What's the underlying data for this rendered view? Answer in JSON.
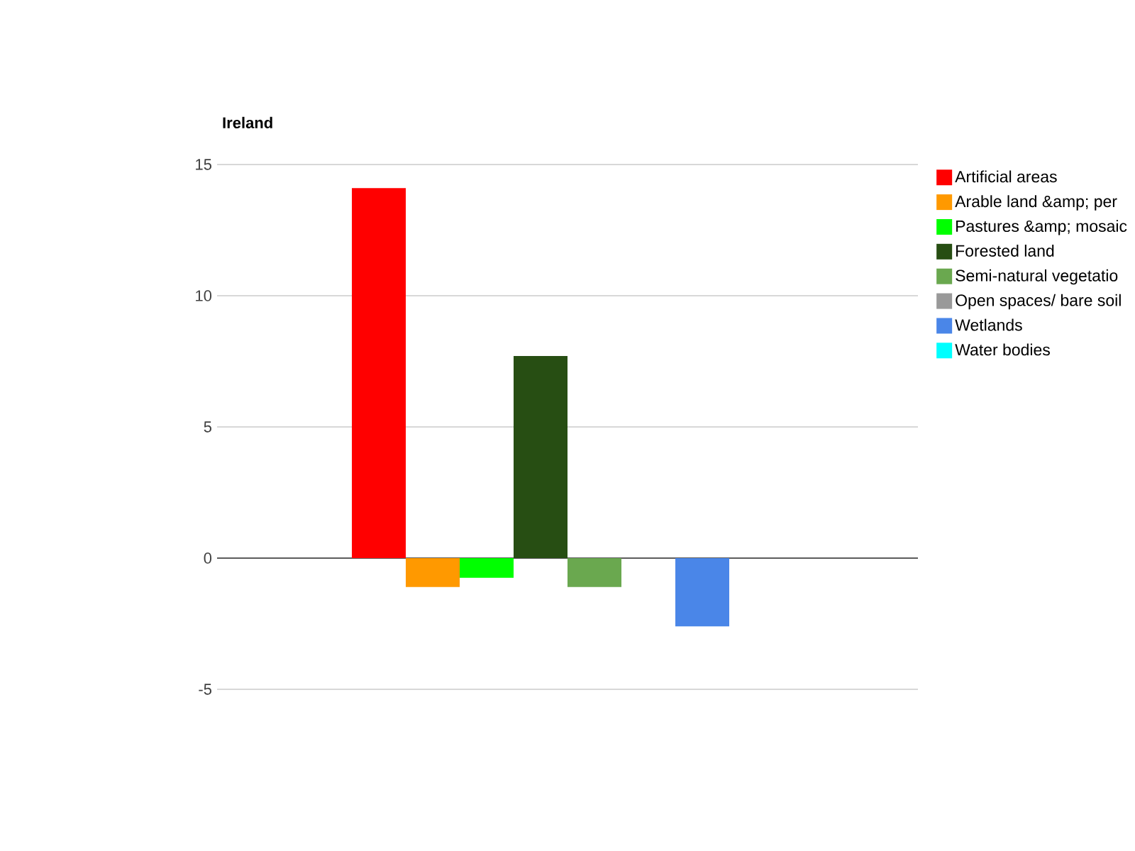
{
  "chart_data": {
    "type": "bar",
    "title": "Ireland",
    "categories": [
      null
    ],
    "series": [
      {
        "name": "Artificial areas",
        "color": "#ff0000",
        "values": [
          14.1
        ]
      },
      {
        "name": "Arable land &amp; per",
        "color": "#ff9900",
        "values": [
          -1.1
        ]
      },
      {
        "name": "Pastures &amp; mosaic",
        "color": "#00ff00",
        "values": [
          -0.75
        ]
      },
      {
        "name": "Forested land",
        "color": "#274e13",
        "values": [
          7.7
        ]
      },
      {
        "name": "Semi-natural vegetatio",
        "color": "#6aa84f",
        "values": [
          -1.1
        ]
      },
      {
        "name": "Open spaces/ bare soil",
        "color": "#999999",
        "values": [
          0
        ]
      },
      {
        "name": "Wetlands",
        "color": "#4a86e8",
        "values": [
          -2.6
        ]
      },
      {
        "name": "Water bodies",
        "color": "#00ffff",
        "values": [
          0
        ]
      }
    ],
    "ylim": [
      -5,
      15
    ],
    "yticks": [
      -5,
      0,
      5,
      10,
      15
    ],
    "grid": "y",
    "legend": "right",
    "tick_labels": "y"
  }
}
